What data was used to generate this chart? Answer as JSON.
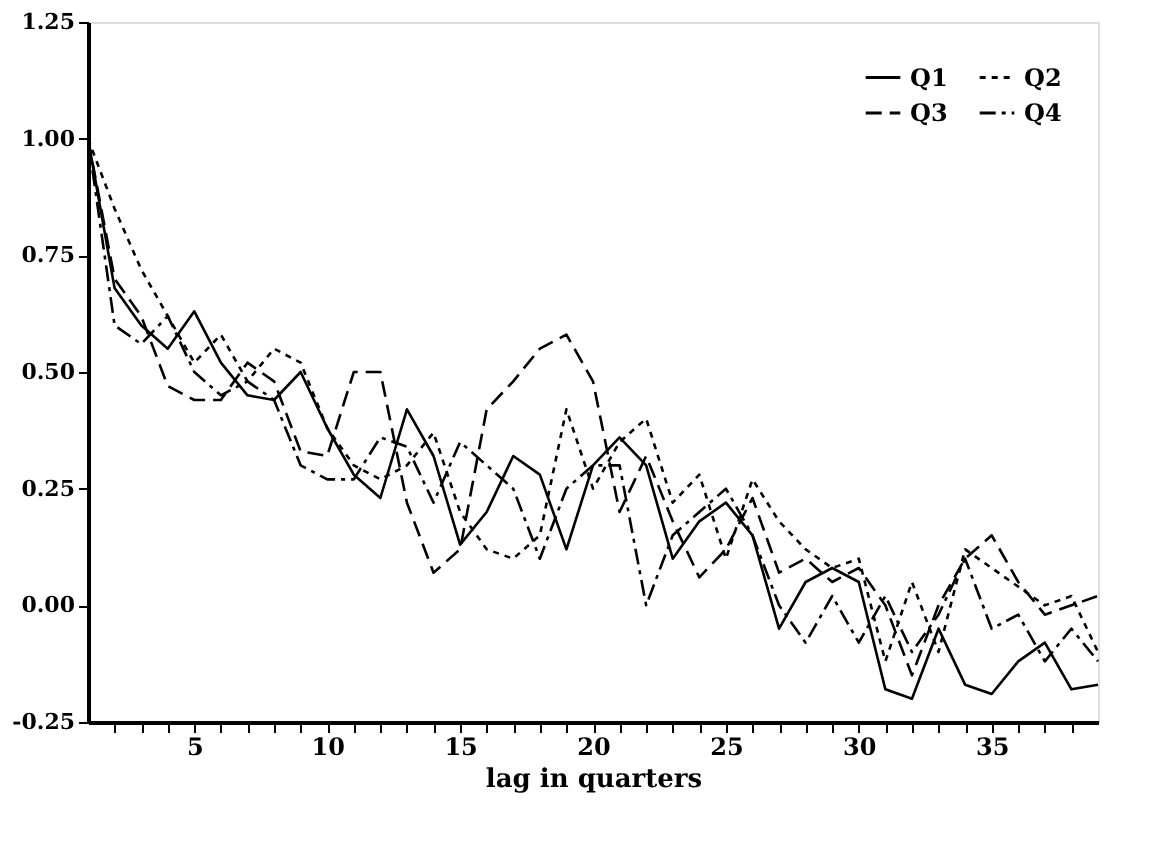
{
  "chart_data": {
    "type": "line",
    "xlabel": "lag in quarters",
    "x": [
      1,
      2,
      3,
      4,
      5,
      6,
      7,
      8,
      9,
      10,
      11,
      12,
      13,
      14,
      15,
      16,
      17,
      18,
      19,
      20,
      21,
      22,
      23,
      24,
      25,
      26,
      27,
      28,
      29,
      30,
      31,
      32,
      33,
      34,
      35,
      36,
      37,
      38,
      39
    ],
    "series": [
      {
        "name": "Q1",
        "color": "#000000",
        "line_style": "solid",
        "values": [
          1.0,
          0.68,
          0.6,
          0.55,
          0.63,
          0.52,
          0.45,
          0.44,
          0.5,
          0.38,
          0.28,
          0.23,
          0.42,
          0.32,
          0.13,
          0.2,
          0.32,
          0.28,
          0.12,
          0.3,
          0.36,
          0.3,
          0.1,
          0.18,
          0.22,
          0.15,
          -0.05,
          0.05,
          0.08,
          0.05,
          -0.18,
          -0.2,
          -0.05,
          -0.17,
          -0.19,
          -0.12,
          -0.08,
          -0.18,
          -0.17
        ]
      },
      {
        "name": "Q2",
        "color": "#000000",
        "line_style": "dotted",
        "values": [
          1.0,
          0.85,
          0.72,
          0.62,
          0.52,
          0.58,
          0.48,
          0.55,
          0.52,
          0.38,
          0.3,
          0.27,
          0.3,
          0.37,
          0.2,
          0.12,
          0.1,
          0.15,
          0.42,
          0.25,
          0.35,
          0.4,
          0.22,
          0.28,
          0.1,
          0.27,
          0.18,
          0.12,
          0.08,
          0.1,
          -0.12,
          0.05,
          -0.1,
          0.12,
          0.08,
          0.04,
          0.0,
          0.02,
          -0.1
        ]
      },
      {
        "name": "Q3",
        "color": "#000000",
        "line_style": "dashed",
        "values": [
          1.0,
          0.7,
          0.62,
          0.47,
          0.44,
          0.44,
          0.52,
          0.48,
          0.33,
          0.32,
          0.5,
          0.5,
          0.22,
          0.07,
          0.12,
          0.42,
          0.48,
          0.55,
          0.58,
          0.48,
          0.2,
          0.32,
          0.18,
          0.06,
          0.12,
          0.23,
          0.07,
          0.1,
          0.05,
          0.08,
          0.0,
          -0.15,
          0.0,
          0.1,
          0.15,
          0.05,
          -0.02,
          0.0,
          0.02
        ]
      },
      {
        "name": "Q4",
        "color": "#000000",
        "line_style": "dashdot",
        "values": [
          1.0,
          0.6,
          0.56,
          0.62,
          0.5,
          0.45,
          0.48,
          0.44,
          0.3,
          0.27,
          0.27,
          0.36,
          0.34,
          0.22,
          0.35,
          0.3,
          0.25,
          0.1,
          0.25,
          0.3,
          0.3,
          0.0,
          0.15,
          0.2,
          0.25,
          0.15,
          0.0,
          -0.08,
          0.02,
          -0.08,
          0.02,
          -0.1,
          -0.02,
          0.1,
          -0.05,
          -0.02,
          -0.12,
          -0.05,
          -0.12
        ]
      }
    ],
    "xlim": [
      1,
      39
    ],
    "xticks": [
      {
        "value": 2,
        "label": null
      },
      {
        "value": 3,
        "label": null
      },
      {
        "value": 4,
        "label": null
      },
      5,
      {
        "value": 6,
        "label": null
      },
      {
        "value": 7,
        "label": null
      },
      {
        "value": 8,
        "label": null
      },
      {
        "value": 9,
        "label": null
      },
      10,
      {
        "value": 11,
        "label": null
      },
      {
        "value": 12,
        "label": null
      },
      {
        "value": 13,
        "label": null
      },
      {
        "value": 14,
        "label": null
      },
      15,
      {
        "value": 16,
        "label": null
      },
      {
        "value": 17,
        "label": null
      },
      {
        "value": 18,
        "label": null
      },
      {
        "value": 19,
        "label": null
      },
      20,
      {
        "value": 21,
        "label": null
      },
      {
        "value": 22,
        "label": null
      },
      {
        "value": 23,
        "label": null
      },
      {
        "value": 24,
        "label": null
      },
      25,
      {
        "value": 26,
        "label": null
      },
      {
        "value": 27,
        "label": null
      },
      {
        "value": 28,
        "label": null
      },
      {
        "value": 29,
        "label": null
      },
      30,
      {
        "value": 31,
        "label": null
      },
      {
        "value": 32,
        "label": null
      },
      {
        "value": 33,
        "label": null
      },
      {
        "value": 34,
        "label": null
      },
      35,
      {
        "value": 36,
        "label": null
      },
      {
        "value": 37,
        "label": null
      },
      {
        "value": 38,
        "label": null
      }
    ],
    "ylim": [
      -0.25,
      1.25
    ],
    "yticks": [
      {
        "value": -0.25,
        "label": "-0.25"
      },
      {
        "value": 0,
        "label": "0.00"
      },
      {
        "value": 0.25,
        "label": "0.25"
      },
      {
        "value": 0.5,
        "label": "0.50"
      },
      {
        "value": 0.75,
        "label": "0.75"
      },
      {
        "value": 1,
        "label": "1.00"
      },
      {
        "value": 1.25,
        "label": "1.25"
      }
    ],
    "grid": false,
    "legend": "top right",
    "marker": "none"
  }
}
